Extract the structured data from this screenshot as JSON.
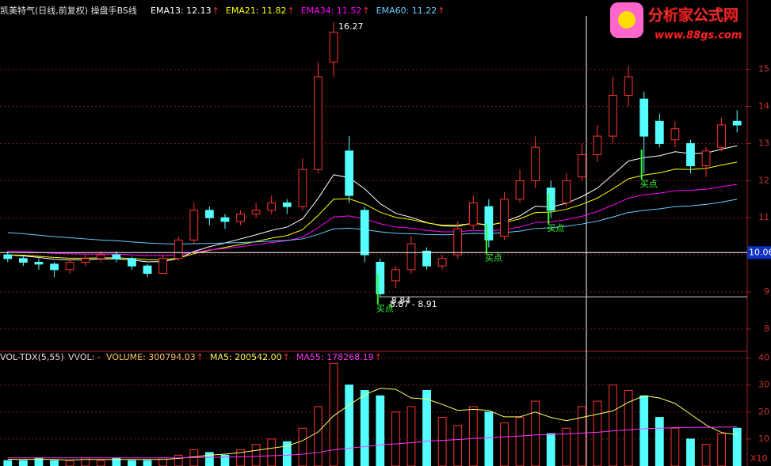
{
  "chart_data": [
    {
      "type": "candlestick",
      "title": "凯美特气(日线,前复权) 操盘手BS线",
      "arrow": "↑",
      "categories": [
        null,
        null,
        null,
        null,
        null,
        null,
        null,
        null,
        null,
        null,
        null,
        null,
        null,
        null,
        null,
        null,
        null,
        null,
        null,
        null,
        null,
        null,
        null,
        null,
        null,
        null,
        null,
        null,
        null,
        null,
        null,
        null,
        null,
        null,
        null,
        null,
        null,
        null,
        null,
        null,
        null,
        null,
        null,
        null,
        null,
        null,
        null,
        null
      ],
      "open": [
        10.0,
        9.9,
        9.8,
        9.75,
        9.6,
        9.8,
        9.9,
        10.0,
        9.9,
        9.7,
        9.5,
        9.9,
        10.4,
        11.2,
        11.0,
        10.9,
        11.1,
        11.2,
        11.4,
        11.3,
        12.3,
        15.2,
        12.8,
        11.2,
        9.8,
        9.3,
        9.6,
        10.1,
        9.7,
        10.0,
        10.8,
        11.3,
        10.5,
        11.5,
        12.0,
        11.8,
        11.4,
        12.1,
        12.7,
        13.2,
        14.3,
        14.2,
        13.6,
        13.1,
        13.0,
        12.4,
        12.9,
        13.6
      ],
      "high": [
        10.1,
        10.0,
        9.9,
        9.8,
        9.9,
        10.0,
        10.1,
        10.1,
        9.95,
        9.75,
        10.0,
        10.5,
        11.4,
        11.3,
        11.1,
        11.2,
        11.4,
        11.6,
        11.5,
        12.6,
        15.2,
        16.27,
        13.2,
        11.3,
        9.9,
        9.7,
        10.5,
        10.2,
        10.0,
        10.9,
        11.6,
        11.5,
        11.7,
        12.3,
        13.2,
        12.0,
        12.2,
        13.0,
        13.5,
        14.8,
        15.1,
        14.4,
        13.8,
        13.6,
        13.1,
        12.9,
        13.7,
        13.9
      ],
      "low": [
        9.8,
        9.7,
        9.6,
        9.4,
        9.5,
        9.7,
        9.8,
        9.8,
        9.6,
        9.4,
        9.5,
        9.85,
        10.3,
        10.8,
        10.7,
        10.8,
        11.0,
        11.1,
        11.1,
        11.2,
        12.2,
        14.8,
        11.4,
        9.8,
        8.84,
        9.1,
        9.5,
        9.6,
        9.6,
        9.9,
        10.7,
        10.2,
        10.4,
        11.4,
        11.8,
        11.0,
        11.3,
        12.0,
        12.5,
        13.0,
        14.0,
        12.2,
        12.9,
        12.9,
        12.2,
        12.1,
        12.8,
        13.3
      ],
      "close": [
        9.9,
        9.8,
        9.75,
        9.6,
        9.8,
        9.9,
        10.0,
        9.9,
        9.7,
        9.5,
        9.9,
        10.4,
        11.2,
        11.0,
        10.9,
        11.1,
        11.2,
        11.4,
        11.3,
        12.3,
        14.8,
        16.0,
        11.6,
        10.0,
        8.95,
        9.6,
        10.3,
        9.7,
        9.9,
        10.7,
        11.4,
        10.4,
        11.5,
        12.0,
        12.9,
        11.2,
        12.0,
        12.7,
        13.2,
        14.3,
        14.8,
        13.2,
        13.0,
        13.4,
        12.4,
        12.8,
        13.5,
        13.5
      ],
      "up_color": "#ff3232",
      "down_color": "#54ffff",
      "series": [
        {
          "name": "EMA13: 12.13",
          "color": "#ffffff",
          "values": [
            10.0,
            9.97,
            9.93,
            9.88,
            9.86,
            9.87,
            9.89,
            9.89,
            9.86,
            9.81,
            9.82,
            9.9,
            10.09,
            10.22,
            10.32,
            10.43,
            10.54,
            10.66,
            10.75,
            10.97,
            11.52,
            12.16,
            12.08,
            11.78,
            11.38,
            11.12,
            11.01,
            10.87,
            10.78,
            10.77,
            10.86,
            10.79,
            10.89,
            11.05,
            11.31,
            11.29,
            11.39,
            11.57,
            11.8,
            12.16,
            12.53,
            12.62,
            12.67,
            12.78,
            12.73,
            12.74,
            12.85,
            12.94
          ]
        },
        {
          "name": "EMA21: 11.82",
          "color": "#ffff00",
          "values": [
            10.0,
            9.99,
            9.96,
            9.93,
            9.91,
            9.91,
            9.92,
            9.92,
            9.9,
            9.87,
            9.87,
            9.91,
            10.03,
            10.12,
            10.2,
            10.28,
            10.36,
            10.45,
            10.52,
            10.68,
            11.06,
            11.5,
            11.51,
            11.37,
            11.15,
            11.01,
            10.95,
            10.86,
            10.8,
            10.8,
            10.85,
            10.81,
            10.87,
            10.97,
            11.14,
            11.15,
            11.23,
            11.36,
            11.53,
            11.78,
            12.05,
            12.15,
            12.21,
            12.31,
            12.3,
            12.33,
            12.42,
            12.5
          ]
        },
        {
          "name": "EMA34: 11.52",
          "color": "#ff00ff",
          "values": [
            10.1,
            10.09,
            10.07,
            10.04,
            10.03,
            10.02,
            10.02,
            10.02,
            10.0,
            9.98,
            9.98,
            10.0,
            10.07,
            10.13,
            10.17,
            10.22,
            10.27,
            10.33,
            10.38,
            10.48,
            10.73,
            11.02,
            11.05,
            10.97,
            10.84,
            10.75,
            10.72,
            10.66,
            10.62,
            10.62,
            10.66,
            10.64,
            10.68,
            10.75,
            10.87,
            10.89,
            10.95,
            11.04,
            11.17,
            11.34,
            11.53,
            11.62,
            11.66,
            11.73,
            11.74,
            11.77,
            11.84,
            11.9
          ]
        },
        {
          "name": "EMA60: 11.22",
          "color": "#66ccff",
          "values": [
            10.6,
            10.57,
            10.53,
            10.49,
            10.46,
            10.43,
            10.4,
            10.38,
            10.35,
            10.32,
            10.3,
            10.29,
            10.3,
            10.31,
            10.32,
            10.33,
            10.35,
            10.37,
            10.39,
            10.43,
            10.55,
            10.7,
            10.72,
            10.68,
            10.62,
            10.58,
            10.57,
            10.55,
            10.54,
            10.55,
            10.58,
            10.57,
            10.6,
            10.64,
            10.71,
            10.73,
            10.77,
            10.83,
            10.91,
            11.02,
            11.14,
            11.2,
            11.24,
            11.3,
            11.32,
            11.36,
            11.42,
            11.5
          ]
        }
      ],
      "signals": {
        "label": "买点",
        "color": "#33ff33",
        "values": [
          null,
          null,
          null,
          null,
          null,
          null,
          null,
          null,
          null,
          null,
          null,
          null,
          null,
          null,
          null,
          null,
          null,
          null,
          null,
          null,
          null,
          null,
          null,
          null,
          8.84,
          null,
          null,
          null,
          null,
          null,
          null,
          10.2,
          null,
          null,
          null,
          11.0,
          null,
          null,
          null,
          null,
          null,
          12.2,
          null,
          null,
          null,
          null,
          null,
          null
        ]
      },
      "peak": {
        "label": "16.27",
        "value": 16.27
      },
      "trough": {
        "label": "8.84",
        "value": 8.84
      },
      "range": {
        "label": "8.87 - 8.91",
        "low": 8.87,
        "high": 8.91
      },
      "cursor": {
        "value": 10.06,
        "label": "10.06"
      },
      "ylim": [
        7.4,
        16.87
      ],
      "yticks": [
        8,
        9,
        10,
        11,
        12,
        13,
        14,
        15
      ],
      "grid": true,
      "watermark": {
        "title": "分析家公式网",
        "url": "www.88gs.com"
      }
    },
    {
      "type": "bar",
      "title": "VOL-TDX(5,55)",
      "subtitle": "VVOL: -",
      "arrow": "↑",
      "volume": {
        "name": "VOLUME: 300794.03",
        "color": "#ffcc66",
        "values": [
          2,
          2,
          3,
          2,
          2,
          3,
          2,
          3,
          2,
          2,
          3,
          4,
          6,
          5,
          4,
          6,
          8,
          10,
          9,
          14,
          22,
          38,
          30,
          28,
          26,
          20,
          22,
          28,
          18,
          15,
          22,
          20,
          16,
          18,
          24,
          12,
          14,
          22,
          24,
          30,
          28,
          26,
          18,
          14,
          10,
          8,
          12,
          14
        ]
      },
      "series": [
        {
          "name": "MA5: 200542.00",
          "color": "#ffff66",
          "values": [
            2.5,
            2.4,
            2.5,
            2.4,
            2.2,
            2.4,
            2.4,
            2.4,
            2.4,
            2.4,
            2.4,
            2.8,
            3.4,
            4,
            4.4,
            5,
            5.8,
            6.6,
            7.4,
            9.4,
            12.6,
            18.6,
            22.6,
            26.4,
            28.8,
            28.4,
            25.2,
            24.8,
            22.8,
            20.6,
            21,
            20.6,
            18.2,
            18.2,
            20,
            18,
            16.8,
            18,
            19.2,
            20.4,
            23.6,
            26,
            25.2,
            23.2,
            19.2,
            15.2,
            12.4,
            11.6
          ]
        },
        {
          "name": "MA55: 178268.19",
          "color": "#ff33ff",
          "values": [
            3,
            3,
            3,
            3,
            3,
            3,
            3,
            3,
            3,
            3,
            3,
            3,
            3.1,
            3.2,
            3.3,
            3.4,
            3.6,
            3.8,
            4,
            4.4,
            5,
            6,
            6.6,
            7.2,
            7.8,
            8.2,
            8.6,
            9.2,
            9.5,
            9.8,
            10.2,
            10.5,
            10.8,
            11.1,
            11.5,
            11.7,
            11.9,
            12.2,
            12.5,
            13,
            13.4,
            13.8,
            14,
            14.2,
            14.3,
            14.3,
            14.4,
            14.5
          ]
        }
      ],
      "ylim": [
        0,
        42.5
      ],
      "yticks": [
        10,
        20,
        30,
        40
      ],
      "scale_label": "X10",
      "grid": true
    }
  ]
}
